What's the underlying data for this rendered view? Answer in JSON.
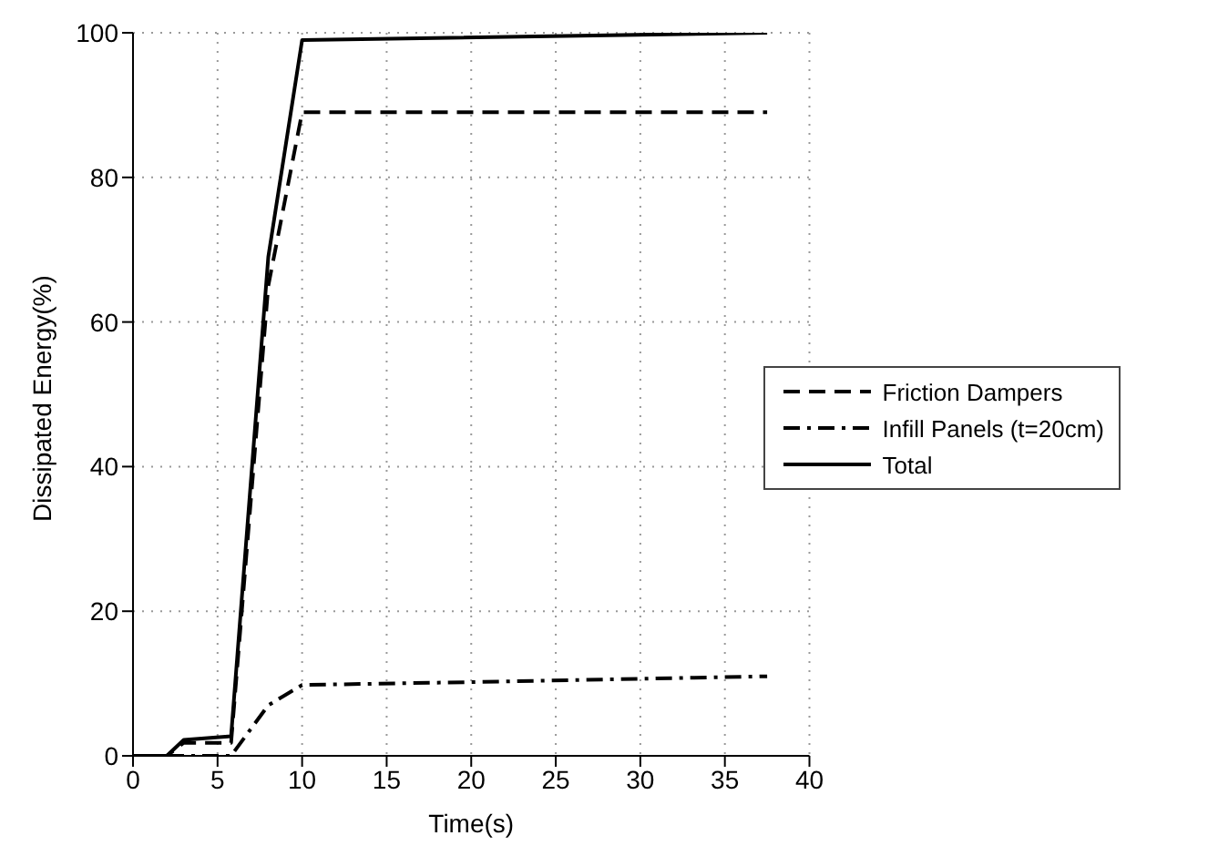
{
  "chart_data": {
    "type": "line",
    "xlabel": "Time(s)",
    "ylabel": "Dissipated Energy(%)",
    "xlim": [
      0,
      40
    ],
    "xticks": [
      0,
      5,
      10,
      15,
      20,
      25,
      30,
      35,
      40
    ],
    "ylim": [
      0,
      100
    ],
    "yticks": [
      0,
      20,
      40,
      60,
      80,
      100
    ],
    "grid": true,
    "legend": "right",
    "marker": "none",
    "series": [
      {
        "name": "Friction Dampers",
        "color": "#000000",
        "line_style": "dashed",
        "x": [
          0,
          2,
          3,
          5.8,
          8,
          10,
          37.5
        ],
        "values": [
          0,
          0,
          1.8,
          1.8,
          65,
          89,
          89
        ]
      },
      {
        "name": "Infill Panels (t=20cm)",
        "color": "#000000",
        "line_style": "dashdot",
        "x": [
          0,
          5.8,
          8,
          10,
          20,
          37.5
        ],
        "values": [
          0,
          0,
          7,
          9.8,
          10.2,
          11
        ]
      },
      {
        "name": "Total",
        "color": "#000000",
        "line_style": "solid",
        "x": [
          0,
          2,
          3,
          5.8,
          8,
          10,
          37.5
        ],
        "values": [
          0,
          0,
          2.2,
          2.7,
          69,
          99,
          100
        ]
      }
    ]
  }
}
